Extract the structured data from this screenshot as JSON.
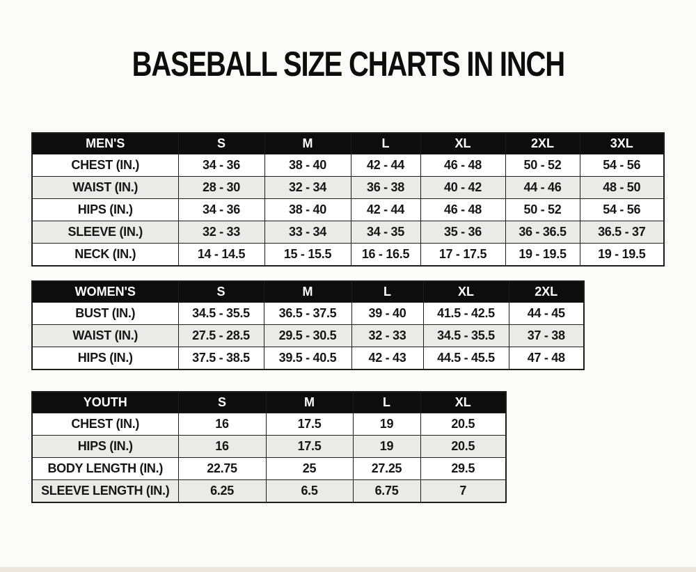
{
  "page": {
    "title": "BASEBALL SIZE CHARTS IN INCH"
  },
  "colors": {
    "page_bg": "#fbfbfa",
    "header_bg": "#0d0d0d",
    "header_text": "#ffffff",
    "row_white": "#ffffff",
    "row_gray": "#eaeae9",
    "border": "#1d1d1d",
    "cell_text": "#161616"
  },
  "chart_data": [
    {
      "type": "table",
      "title": "MEN'S",
      "header": [
        "MEN'S",
        "S",
        "M",
        "L",
        "XL",
        "2XL",
        "3XL"
      ],
      "rows": [
        [
          "CHEST (IN.)",
          "34 - 36",
          "38 - 40",
          "42 - 44",
          "46 - 48",
          "50 - 52",
          "54 - 56"
        ],
        [
          "WAIST (IN.)",
          "28 - 30",
          "32 - 34",
          "36 - 38",
          "40 - 42",
          "44 - 46",
          "48 - 50"
        ],
        [
          "HIPS (IN.)",
          "34 - 36",
          "38 - 40",
          "42 - 44",
          "46 - 48",
          "50 - 52",
          "54 - 56"
        ],
        [
          "SLEEVE (IN.)",
          "32 - 33",
          "33 - 34",
          "34 - 35",
          "35 - 36",
          "36 - 36.5",
          "36.5 - 37"
        ],
        [
          "NECK (IN.)",
          "14 - 14.5",
          "15 - 15.5",
          "16 - 16.5",
          "17 - 17.5",
          "19 - 19.5",
          "19 - 19.5"
        ]
      ]
    },
    {
      "type": "table",
      "title": "WOMEN'S",
      "header": [
        "WOMEN'S",
        "S",
        "M",
        "L",
        "XL",
        "2XL"
      ],
      "rows": [
        [
          "BUST (IN.)",
          "34.5 - 35.5",
          "36.5 - 37.5",
          "39 - 40",
          "41.5 - 42.5",
          "44 - 45"
        ],
        [
          "WAIST (IN.)",
          "27.5 - 28.5",
          "29.5 - 30.5",
          "32 - 33",
          "34.5 - 35.5",
          "37 - 38"
        ],
        [
          "HIPS (IN.)",
          "37.5 - 38.5",
          "39.5 - 40.5",
          "42 - 43",
          "44.5 - 45.5",
          "47 - 48"
        ]
      ]
    },
    {
      "type": "table",
      "title": "YOUTH",
      "header": [
        "YOUTH",
        "S",
        "M",
        "L",
        "XL"
      ],
      "rows": [
        [
          "CHEST (IN.)",
          "16",
          "17.5",
          "19",
          "20.5"
        ],
        [
          "HIPS (IN.)",
          "16",
          "17.5",
          "19",
          "20.5"
        ],
        [
          "BODY LENGTH (IN.)",
          "22.75",
          "25",
          "27.25",
          "29.5"
        ],
        [
          "SLEEVE LENGTH (IN.)",
          "6.25",
          "6.5",
          "6.75",
          "7"
        ]
      ]
    }
  ]
}
